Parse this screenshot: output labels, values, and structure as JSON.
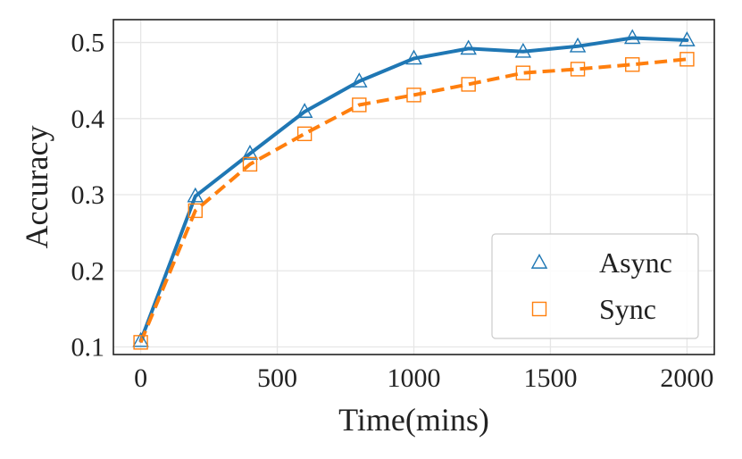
{
  "chart_data": {
    "type": "line",
    "xlabel": "Time(mins)",
    "ylabel": "Accuracy",
    "xlim": [
      -100,
      2100
    ],
    "ylim": [
      0.09,
      0.53
    ],
    "x_ticks": [
      0,
      500,
      1000,
      1500,
      2000
    ],
    "y_ticks": [
      0.1,
      0.2,
      0.3,
      0.4,
      0.5
    ],
    "x_tick_labels": [
      "0",
      "500",
      "1000",
      "1500",
      "2000"
    ],
    "y_tick_labels": [
      "0.1",
      "0.2",
      "0.3",
      "0.4",
      "0.5"
    ],
    "grid": true,
    "legend_position": "lower right",
    "x": [
      0,
      200,
      400,
      600,
      800,
      1000,
      1200,
      1400,
      1600,
      1800,
      2000
    ],
    "series": [
      {
        "name": "Async",
        "values": [
          0.108,
          0.298,
          0.354,
          0.409,
          0.449,
          0.479,
          0.492,
          0.488,
          0.495,
          0.506,
          0.503
        ],
        "color": "#1f77b4",
        "line_style": "solid",
        "marker": "triangle"
      },
      {
        "name": "Sync",
        "values": [
          0.106,
          0.279,
          0.34,
          0.38,
          0.418,
          0.431,
          0.445,
          0.46,
          0.465,
          0.471,
          0.478
        ],
        "color": "#ff7f0e",
        "line_style": "dashed",
        "marker": "square"
      }
    ]
  }
}
